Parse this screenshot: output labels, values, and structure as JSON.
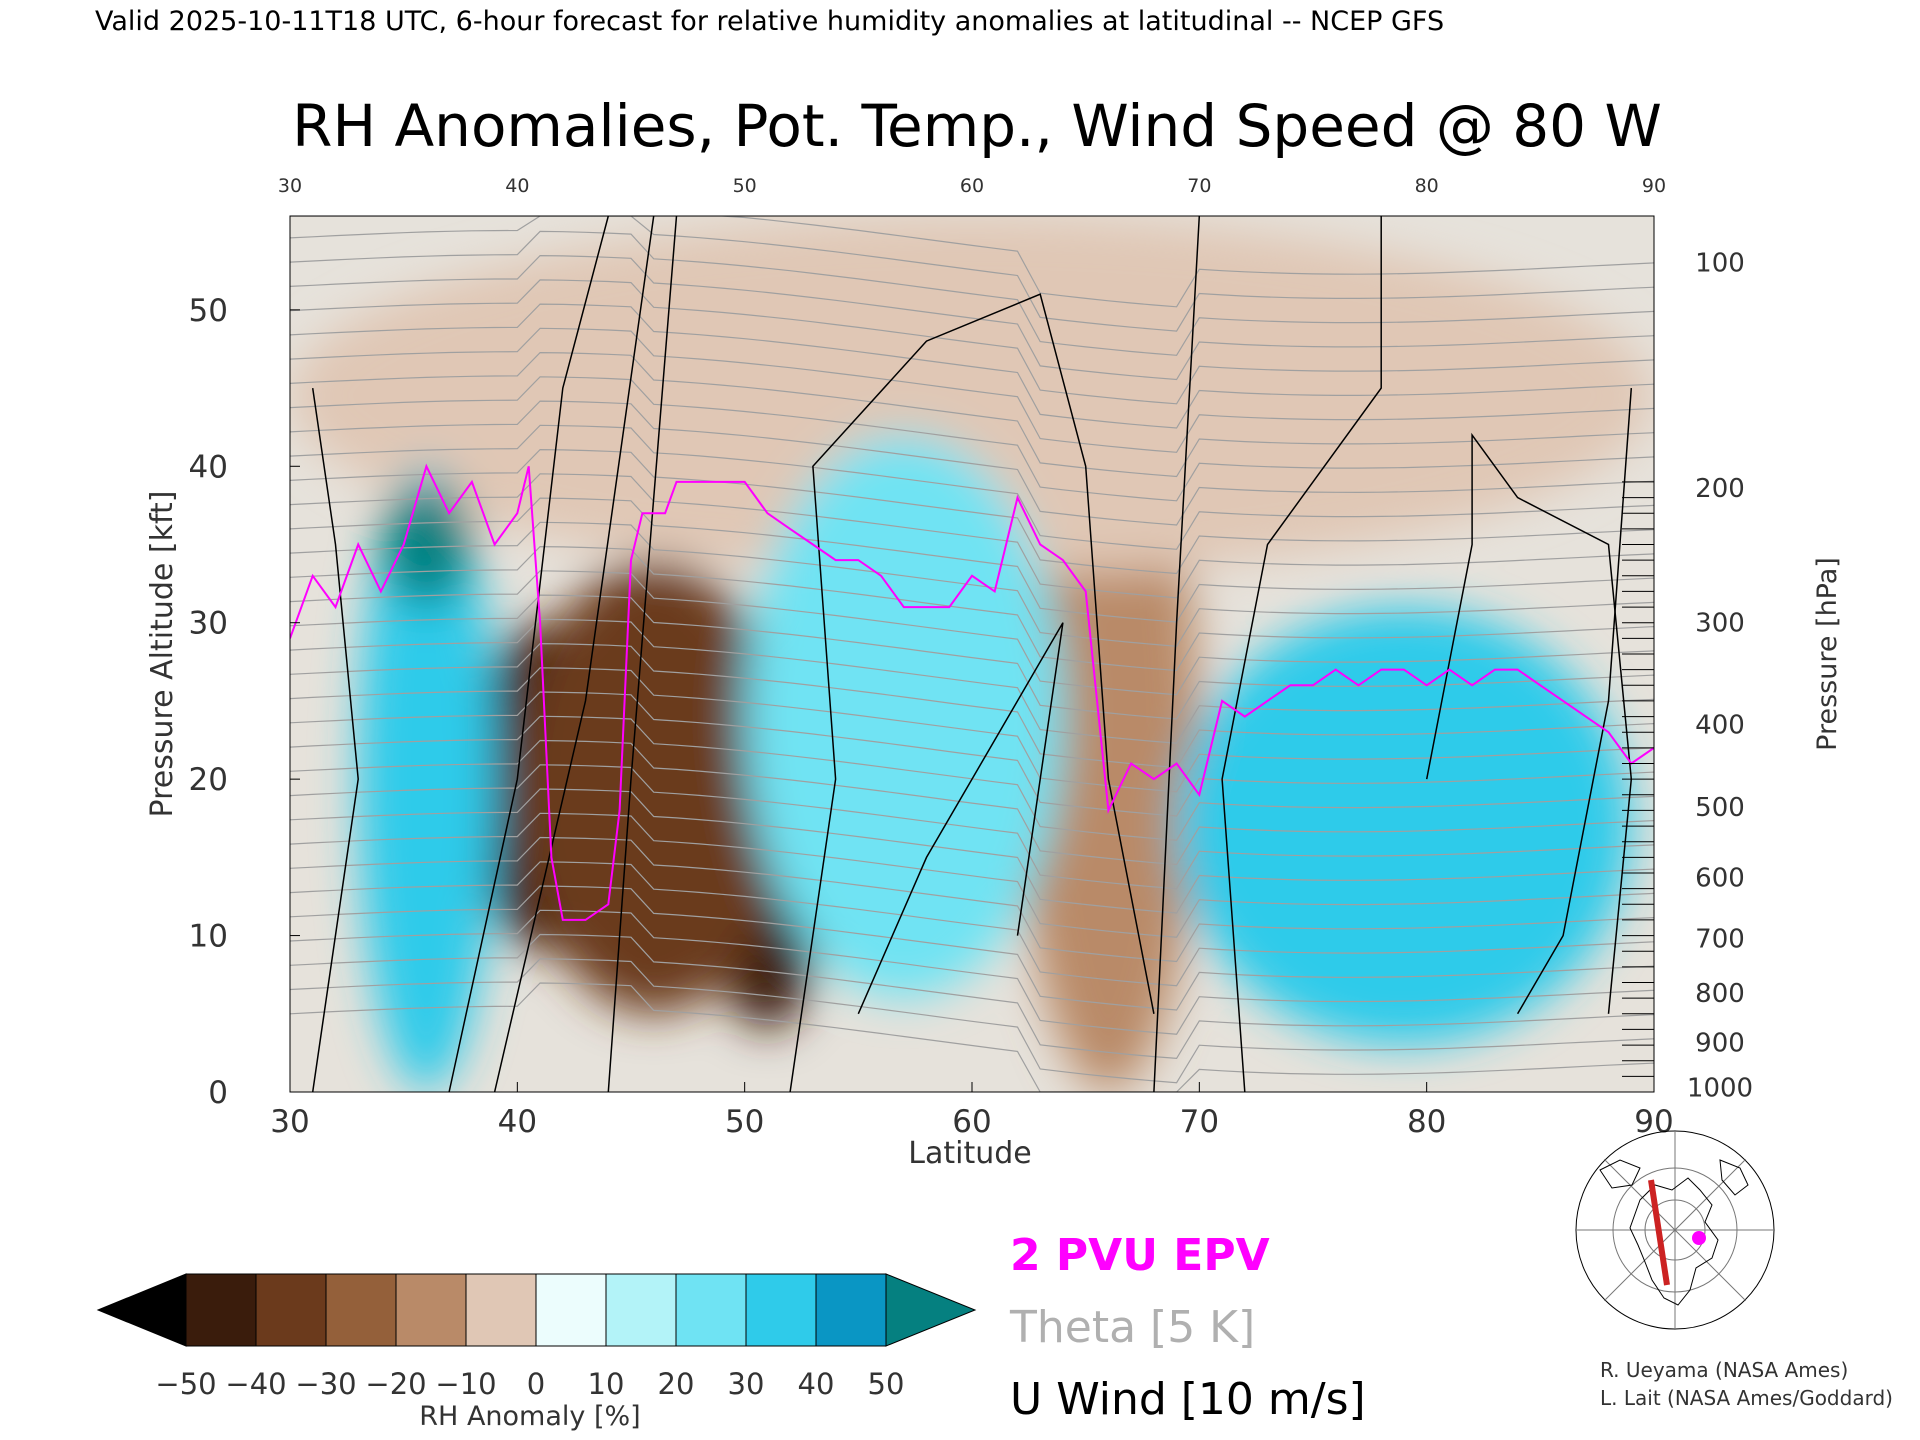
{
  "header": "Valid 2025-10-11T18 UTC, 6-hour forecast for relative humidity anomalies at latitudinal -- NCEP GFS",
  "chart_data": {
    "type": "heatmap",
    "title": "RH Anomalies, Pot. Temp., Wind Speed @ 80 W",
    "xlabel": "Latitude",
    "ylabel": "Pressure Altitude [kft]",
    "y2label": "Pressure [hPa]",
    "xlim": [
      30,
      90
    ],
    "ylim": [
      0,
      56
    ],
    "x_ticks": [
      "30",
      "40",
      "50",
      "60",
      "70",
      "80",
      "90"
    ],
    "top_ticks": [
      "30",
      "40",
      "50",
      "60",
      "70",
      "80",
      "90"
    ],
    "y_ticks": [
      "0",
      "10",
      "20",
      "30",
      "40",
      "50"
    ],
    "pressure_ticks": [
      {
        "label": "1000",
        "kft": 0.36
      },
      {
        "label": "900",
        "kft": 3.23
      },
      {
        "label": "800",
        "kft": 6.39
      },
      {
        "label": "700",
        "kft": 9.88
      },
      {
        "label": "600",
        "kft": 13.79
      },
      {
        "label": "500",
        "kft": 18.29
      },
      {
        "label": "400",
        "kft": 23.57
      },
      {
        "label": "300",
        "kft": 30.07
      },
      {
        "label": "200",
        "kft": 38.66
      },
      {
        "label": "100",
        "kft": 53.08
      }
    ],
    "colorbar": {
      "label": "RH Anomaly [%]",
      "ticks": [
        "−50",
        "−40",
        "−30",
        "−20",
        "−10",
        "0",
        "10",
        "20",
        "30",
        "40",
        "50"
      ],
      "colors": [
        "#000000",
        "#3a1c0c",
        "#6b3a1c",
        "#94603a",
        "#b98a68",
        "#e0c7b5",
        "#ecfdfd",
        "#b3f3f8",
        "#6fe3f3",
        "#2fcbea",
        "#0a96c4",
        "#058080"
      ]
    },
    "rh_anomaly_regions": [
      {
        "lat": [
          38,
          44
        ],
        "kft": [
          9,
          30
        ],
        "value": -50
      },
      {
        "lat": [
          49,
          53
        ],
        "kft": [
          4,
          14
        ],
        "value": -50
      },
      {
        "lat": [
          40,
          52
        ],
        "kft": [
          5,
          34
        ],
        "value": -35
      },
      {
        "lat": [
          62,
          70
        ],
        "kft": [
          0,
          45
        ],
        "value": -20
      },
      {
        "lat": [
          30,
          90
        ],
        "kft": [
          33,
          56
        ],
        "value": -10
      },
      {
        "lat": [
          33,
          39
        ],
        "kft": [
          0,
          40
        ],
        "value": 30
      },
      {
        "lat": [
          50,
          64
        ],
        "kft": [
          6,
          42
        ],
        "value": 25
      },
      {
        "lat": [
          69,
          89
        ],
        "kft": [
          3,
          31
        ],
        "value": 30
      },
      {
        "lat": [
          34,
          38
        ],
        "kft": [
          31,
          39
        ],
        "value": 50
      }
    ],
    "series": [
      {
        "name": "2 PVU EPV",
        "color": "#ff00ff",
        "x": [
          30,
          31,
          32,
          33,
          34,
          35,
          36,
          37,
          38,
          39,
          40,
          40.5,
          41,
          41.5,
          42,
          43,
          44,
          44.5,
          45,
          45.5,
          46,
          46.5,
          47,
          48,
          49,
          50,
          51,
          52,
          53,
          54,
          55,
          56,
          57,
          58,
          59,
          60,
          61,
          62,
          63,
          64,
          65,
          66,
          67,
          68,
          69,
          70,
          71,
          72,
          73,
          74,
          75,
          76,
          77,
          78,
          79,
          80,
          81,
          82,
          83,
          84,
          85,
          86,
          87,
          88,
          89,
          90
        ],
        "y": [
          29,
          33,
          31,
          35,
          32,
          35,
          40,
          37,
          39,
          35,
          37,
          40,
          30,
          15,
          11,
          11,
          12,
          18,
          34,
          37,
          37,
          37,
          39,
          39,
          39,
          39,
          37,
          36,
          35,
          34,
          34,
          33,
          31,
          31,
          31,
          33,
          32,
          38,
          35,
          34,
          32,
          18,
          21,
          20,
          21,
          19,
          25,
          24,
          25,
          26,
          26,
          27,
          26,
          27,
          27,
          26,
          27,
          26,
          27,
          27,
          26,
          25,
          24,
          23,
          21,
          22
        ]
      },
      {
        "name": "Theta [5 K]",
        "color": "#a0a0a0",
        "levels": [
          "270",
          "280",
          "290",
          "300",
          "310",
          "320",
          "330",
          "340",
          "350",
          "360",
          "370",
          "380",
          "390",
          "400",
          "410",
          "420"
        ]
      },
      {
        "name": "U Wind [10 m/s]",
        "color": "#000000",
        "levels": [
          "0",
          "10",
          "30"
        ]
      }
    ]
  },
  "legend": {
    "epv": "2 PVU EPV",
    "theta": "Theta [5 K]",
    "uwind": "U Wind [10 m/s]"
  },
  "credits": {
    "line1": "R. Ueyama (NASA Ames)",
    "line2": "L. Lait (NASA Ames/Goddard)"
  },
  "colors": {
    "epv": "#ff00ff",
    "theta": "#a0a0a0",
    "map_track": "#cc2222",
    "map_point": "#ff00ff"
  }
}
